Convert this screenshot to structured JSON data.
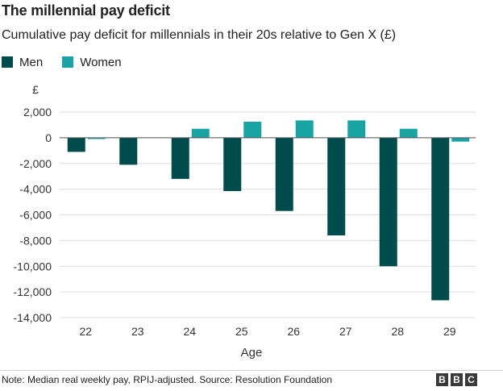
{
  "header": {
    "title": "The millennial pay deficit",
    "subtitle": "Cumulative pay deficit for millennials in their 20s relative to Gen X (£)"
  },
  "legend": [
    {
      "label": "Men",
      "color": "#004b4b"
    },
    {
      "label": "Women",
      "color": "#1aa3a3"
    }
  ],
  "footer": {
    "note": "Note: Median real weekly pay, RPIJ-adjusted. Source: Resolution Foundation",
    "logo_letters": [
      "B",
      "B",
      "C"
    ]
  },
  "chart_data": {
    "type": "bar",
    "title": "The millennial pay deficit",
    "subtitle": "Cumulative pay deficit for millennials in their 20s relative to Gen X (£)",
    "xlabel": "Age",
    "ylabel": "£",
    "categories": [
      "22",
      "23",
      "24",
      "25",
      "26",
      "27",
      "28",
      "29"
    ],
    "series": [
      {
        "name": "Men",
        "color": "#004b4b",
        "values": [
          -1100,
          -2100,
          -3200,
          -4150,
          -5700,
          -7600,
          -10000,
          -12650
        ]
      },
      {
        "name": "Women",
        "color": "#1aa3a3",
        "values": [
          -100,
          0,
          700,
          1250,
          1350,
          1350,
          700,
          -300
        ]
      }
    ],
    "ylim": [
      -14000,
      2000
    ],
    "yticks": [
      2000,
      0,
      -2000,
      -4000,
      -6000,
      -8000,
      -10000,
      -12000,
      -14000
    ],
    "ytick_labels": [
      "2,000",
      "0",
      "-2,000",
      "-4,000",
      "-6,000",
      "-8,000",
      "-10,000",
      "-12,000",
      "-14,000"
    ],
    "grid": true,
    "legend_position": "top-left"
  }
}
